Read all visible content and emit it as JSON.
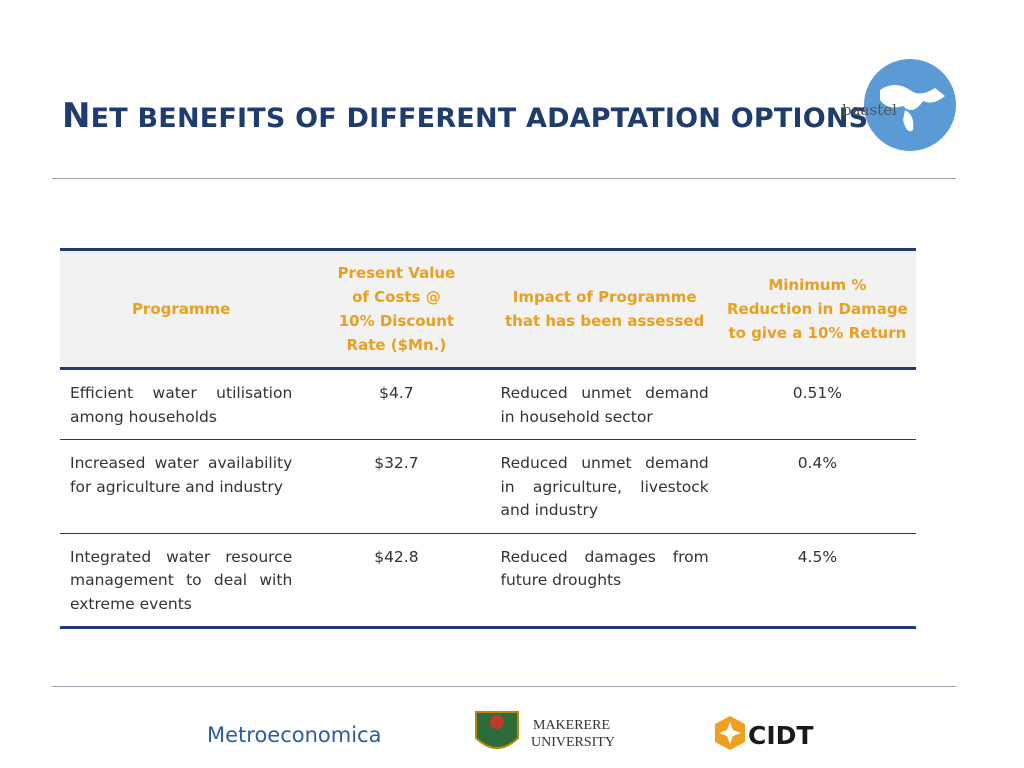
{
  "header": {
    "title": "NET BENEFITS OF DIFFERENT ADAPTATION OPTIONS",
    "logo": "baastel"
  },
  "table": {
    "columns": [
      "Programme",
      "Present Value of Costs @ 10% Discount Rate ($Mn.)",
      "Impact of Programme that has been assessed",
      "Minimum % Reduction in Damage to give a 10% Return"
    ],
    "rows": [
      [
        "Efficient water utilisation among households",
        "$4.7",
        "Reduced unmet demand in household sector",
        "0.51%"
      ],
      [
        "Increased water availability for agriculture and industry",
        "$32.7",
        "Reduced unmet demand in agriculture, livestock and industry",
        "0.4%"
      ],
      [
        "Integrated water resource management to deal with extreme events",
        "$42.8",
        "Reduced damages from future droughts",
        "4.5%"
      ]
    ]
  },
  "footer": {
    "logos": [
      "Metroeconomica",
      "MAKERERE",
      "UNIVERSITY",
      "CIDT"
    ]
  }
}
